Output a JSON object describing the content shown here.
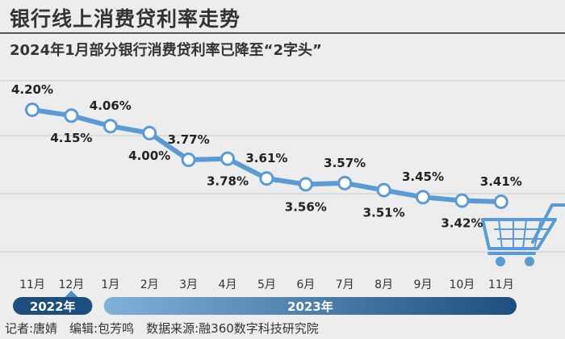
{
  "header": {
    "title": "银行线上消费贷利率走势",
    "subtitle": "2024年1月部分银行消费贷利率已降至“2字头”"
  },
  "credits": {
    "text": "记者:唐婧　编辑:包芳鸣　数据来源:融360数字科技研究院"
  },
  "colors": {
    "line": "#5b9bd5",
    "marker_fill": "#ffffff",
    "year_bar_dark": "#1d4f7e",
    "year_bar_light": "#7fb1da",
    "cart": "#5b9bd5",
    "grid": "#c8c8c8"
  },
  "chart_data": {
    "type": "line",
    "title": "2024年1月部分银行消费贷利率已降至“2字头”",
    "categories": [
      "11月",
      "12月",
      "1月",
      "2月",
      "3月",
      "4月",
      "5月",
      "6月",
      "7月",
      "8月",
      "9月",
      "10月",
      "11月"
    ],
    "values": [
      4.2,
      4.15,
      4.06,
      4.0,
      3.77,
      3.78,
      3.61,
      3.56,
      3.57,
      3.51,
      3.45,
      3.42,
      3.41
    ],
    "value_labels": [
      "4.20%",
      "4.15%",
      "4.06%",
      "4.00%",
      "3.77%",
      "3.78%",
      "3.61%",
      "3.56%",
      "3.57%",
      "3.51%",
      "3.45%",
      "3.42%",
      "3.41%"
    ],
    "label_side": [
      "above",
      "below",
      "above",
      "below",
      "above",
      "below",
      "above",
      "below",
      "above",
      "below",
      "above",
      "below",
      "above"
    ],
    "years": [
      {
        "label": "2022年",
        "start_index": 0,
        "end_index": 1
      },
      {
        "label": "2023年",
        "start_index": 2,
        "end_index": 12
      }
    ],
    "ylabel": "",
    "xlabel": "",
    "ylim": [
      3.0,
      4.4
    ],
    "grid": true
  }
}
